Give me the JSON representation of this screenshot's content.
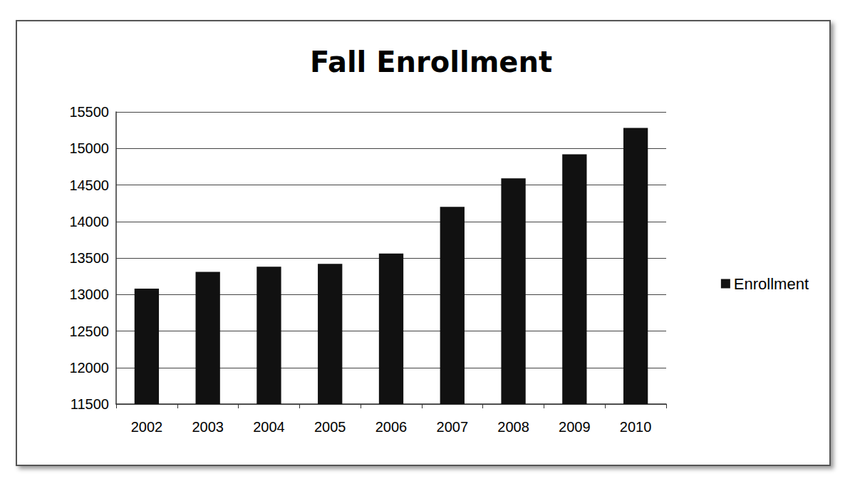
{
  "chart_data": {
    "type": "bar",
    "title": "Fall Enrollment",
    "categories": [
      "2002",
      "2003",
      "2004",
      "2005",
      "2006",
      "2007",
      "2008",
      "2009",
      "2010"
    ],
    "series": [
      {
        "name": "Enrollment",
        "color": "#111111",
        "values": [
          13080,
          13310,
          13380,
          13420,
          13560,
          14200,
          14590,
          14920,
          15280
        ]
      }
    ],
    "ylim": [
      11500,
      15500
    ],
    "yticks": [
      11500,
      12000,
      12500,
      13000,
      13500,
      14000,
      14500,
      15000,
      15500
    ],
    "grid": true,
    "legend": "right"
  }
}
